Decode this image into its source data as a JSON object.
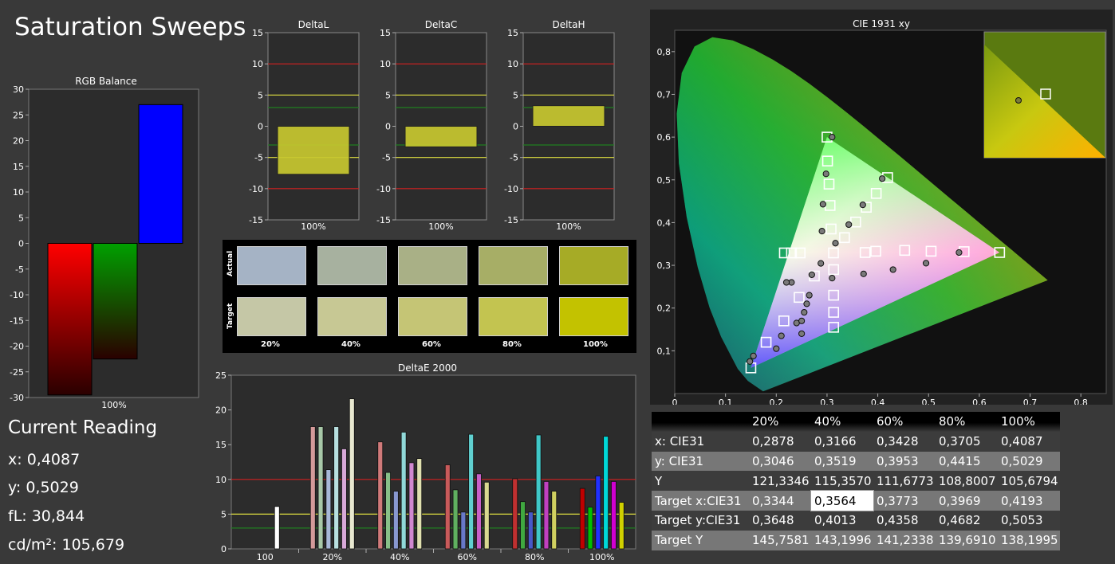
{
  "page": {
    "title": "Saturation Sweeps"
  },
  "current_reading": {
    "heading": "Current Reading",
    "x_label": "x: ",
    "x": "0,4087",
    "y_label": "y: ",
    "y": "0,5029",
    "fl_label": "fL: ",
    "fl": "30,844",
    "cd_label": "cd/m²: ",
    "cd": "105,679"
  },
  "swatches": {
    "actual_label": "Actual",
    "target_label": "Target",
    "levels": [
      "20%",
      "40%",
      "60%",
      "80%",
      "100%"
    ],
    "actual_colors": [
      "#a5b3c5",
      "#a7b19f",
      "#a9b086",
      "#a7ae66",
      "#a6ab26"
    ],
    "target_colors": [
      "#c5c7a6",
      "#c7c894",
      "#c5c575",
      "#c3c450",
      "#c3c200"
    ]
  },
  "table": {
    "columns": [
      "",
      "20%",
      "40%",
      "60%",
      "80%",
      "100%"
    ],
    "rows": [
      {
        "label": "x: CIE31",
        "values": [
          "0,2878",
          "0,3166",
          "0,3428",
          "0,3705",
          "0,4087"
        ]
      },
      {
        "label": "y: CIE31",
        "values": [
          "0,3046",
          "0,3519",
          "0,3953",
          "0,4415",
          "0,5029"
        ]
      },
      {
        "label": "Y",
        "values": [
          "121,3346",
          "115,3570",
          "111,6773",
          "108,8007",
          "105,6794"
        ]
      },
      {
        "label": "Target x:CIE31",
        "values": [
          "0,3344",
          "0,3564",
          "0,3773",
          "0,3969",
          "0,4193"
        ]
      },
      {
        "label": "Target y:CIE31",
        "values": [
          "0,3648",
          "0,4013",
          "0,4358",
          "0,4682",
          "0,5053"
        ]
      },
      {
        "label": "Target Y",
        "values": [
          "145,7581",
          "143,1996",
          "141,2338",
          "139,6910",
          "138,1995"
        ]
      }
    ],
    "selected_cell": "0,3564"
  },
  "chart_data": [
    {
      "type": "bar",
      "title": "RGB Balance",
      "categories": [
        "100%"
      ],
      "series": [
        {
          "color": "#ff0000",
          "values": [
            -29.5
          ]
        },
        {
          "color": "#00a000",
          "values": [
            -22.5
          ]
        },
        {
          "color": "#0000ff",
          "values": [
            27.0
          ]
        }
      ],
      "ylim": [
        -30,
        30
      ],
      "yticks": [
        "30",
        "25",
        "20",
        "15",
        "10",
        "5",
        "0",
        "-5",
        "-10",
        "-15",
        "-20",
        "-25",
        "-30"
      ],
      "colors": {
        "red": "#ff0000",
        "green": "#00a000",
        "blue": "#0000ff"
      }
    },
    {
      "type": "bar",
      "title": "DeltaL",
      "categories": [
        "100%"
      ],
      "values": [
        -7.7
      ],
      "ylim": [
        -15,
        15
      ],
      "yticks": [
        "15",
        "10",
        "5",
        "0",
        "-5",
        "-10",
        "-15"
      ]
    },
    {
      "type": "bar",
      "title": "DeltaC",
      "categories": [
        "100%"
      ],
      "values": [
        -3.3
      ],
      "ylim": [
        -15,
        15
      ],
      "yticks": [
        "15",
        "10",
        "5",
        "0",
        "-5",
        "-10",
        "-15"
      ]
    },
    {
      "type": "bar",
      "title": "DeltaH",
      "categories": [
        "100%"
      ],
      "values": [
        3.3
      ],
      "ylim": [
        -15,
        15
      ],
      "yticks": [
        "15",
        "10",
        "5",
        "0",
        "-5",
        "-10",
        "-15"
      ]
    },
    {
      "type": "bar",
      "title": "DeltaE 2000",
      "categories": [
        "100",
        "20%",
        "40%",
        "60%",
        "80%",
        "100%"
      ],
      "ylim": [
        0,
        25
      ],
      "yticks": [
        "25",
        "20",
        "15",
        "10",
        "5",
        "0"
      ],
      "groups": [
        {
          "values": [
            6.1
          ],
          "colors": [
            "#ffffff"
          ]
        },
        {
          "values": [
            17.6,
            17.6,
            11.4,
            17.6,
            14.4,
            21.6
          ],
          "colors": [
            "#d49a9a",
            "#a8c8a8",
            "#a8b8d8",
            "#b8e0e0",
            "#d8a8d8",
            "#e8e8d0"
          ]
        },
        {
          "values": [
            15.4,
            11.0,
            8.3,
            16.8,
            12.4,
            13.0
          ],
          "colors": [
            "#d07a7a",
            "#88c088",
            "#8898d0",
            "#90d8d8",
            "#d088d0",
            "#e0e0b0"
          ]
        },
        {
          "values": [
            12.1,
            8.5,
            5.3,
            16.5,
            10.8,
            9.6
          ],
          "colors": [
            "#c85a5a",
            "#60b060",
            "#6878c8",
            "#60d0d0",
            "#c860c8",
            "#d8d890"
          ]
        },
        {
          "values": [
            10.1,
            6.8,
            5.3,
            16.4,
            9.7,
            8.3
          ],
          "colors": [
            "#c03030",
            "#40a840",
            "#4858c8",
            "#40c8c8",
            "#c040c0",
            "#d0d060"
          ]
        },
        {
          "values": [
            8.7,
            6.0,
            10.5,
            16.2,
            9.7,
            6.7
          ],
          "colors": [
            "#c00000",
            "#00c000",
            "#2030ff",
            "#00d8d8",
            "#d000d0",
            "#d0d000"
          ]
        }
      ]
    },
    {
      "type": "scatter",
      "title": "CIE 1931 xy",
      "xlim": [
        0,
        0.85
      ],
      "ylim": [
        0,
        0.85
      ],
      "xticks": [
        "0",
        "0,1",
        "0,2",
        "0,3",
        "0,4",
        "0,5",
        "0,6",
        "0,7",
        "0,8"
      ],
      "yticks": [
        "0,1",
        "0,2",
        "0,3",
        "0,4",
        "0,5",
        "0,6",
        "0,7",
        "0,8"
      ],
      "gamut": [
        [
          0.64,
          0.33
        ],
        [
          0.3,
          0.6
        ],
        [
          0.15,
          0.06
        ]
      ],
      "targets": [
        [
          0.3127,
          0.329
        ],
        [
          0.396,
          0.333
        ],
        [
          0.453,
          0.335
        ],
        [
          0.505,
          0.333
        ],
        [
          0.57,
          0.332
        ],
        [
          0.64,
          0.33
        ],
        [
          0.3,
          0.6
        ],
        [
          0.301,
          0.544
        ],
        [
          0.304,
          0.49
        ],
        [
          0.306,
          0.44
        ],
        [
          0.308,
          0.385
        ],
        [
          0.15,
          0.06
        ],
        [
          0.18,
          0.12
        ],
        [
          0.215,
          0.17
        ],
        [
          0.245,
          0.225
        ],
        [
          0.275,
          0.275
        ],
        [
          0.3344,
          0.3648
        ],
        [
          0.3564,
          0.4013
        ],
        [
          0.3773,
          0.4358
        ],
        [
          0.3969,
          0.4682
        ],
        [
          0.4193,
          0.5053
        ],
        [
          0.247,
          0.329
        ],
        [
          0.23,
          0.329
        ],
        [
          0.216,
          0.329
        ],
        [
          0.313,
          0.29
        ],
        [
          0.313,
          0.23
        ],
        [
          0.313,
          0.19
        ],
        [
          0.313,
          0.155
        ],
        [
          0.375,
          0.33
        ]
      ],
      "measured": [
        [
          0.2878,
          0.3046
        ],
        [
          0.3166,
          0.3519
        ],
        [
          0.3428,
          0.3953
        ],
        [
          0.3705,
          0.4415
        ],
        [
          0.4087,
          0.5029
        ],
        [
          0.372,
          0.28
        ],
        [
          0.43,
          0.29
        ],
        [
          0.495,
          0.305
        ],
        [
          0.56,
          0.33
        ],
        [
          0.31,
          0.6
        ],
        [
          0.298,
          0.514
        ],
        [
          0.292,
          0.443
        ],
        [
          0.29,
          0.38
        ],
        [
          0.21,
          0.135
        ],
        [
          0.2,
          0.105
        ],
        [
          0.155,
          0.088
        ],
        [
          0.148,
          0.075
        ],
        [
          0.24,
          0.165
        ],
        [
          0.27,
          0.278
        ],
        [
          0.23,
          0.26
        ],
        [
          0.22,
          0.26
        ],
        [
          0.255,
          0.19
        ],
        [
          0.25,
          0.17
        ],
        [
          0.25,
          0.14
        ],
        [
          0.26,
          0.21
        ],
        [
          0.265,
          0.23
        ],
        [
          0.31,
          0.27
        ]
      ]
    }
  ]
}
